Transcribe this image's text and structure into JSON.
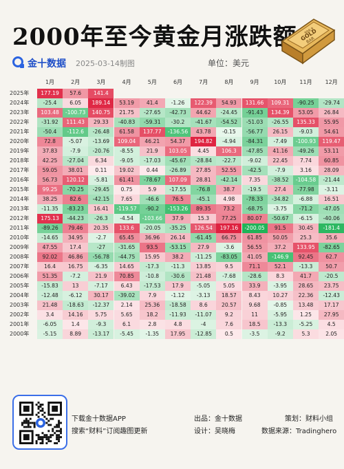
{
  "title": "2000年至今黄金月涨跌额",
  "brand": {
    "name": "金十数据",
    "date": "2025-03-14制图",
    "unit": "单位：美元"
  },
  "gold_bar_text": [
    "999.9",
    "GOLD",
    "BAR"
  ],
  "months": [
    "1月",
    "2月",
    "3月",
    "4月",
    "5月",
    "6月",
    "7月",
    "8月",
    "9月",
    "10月",
    "11月",
    "12月"
  ],
  "rows": [
    {
      "year": "2025年",
      "values": [
        "177.19",
        "57.6",
        "141.4",
        "",
        "",
        "",
        "",
        "",
        "",
        "",
        "",
        ""
      ]
    },
    {
      "year": "2024年",
      "values": [
        "-25.4",
        "6.05",
        "189.14",
        "53.19",
        "41.4",
        "-1.26",
        "122.39",
        "54.93",
        "131.66",
        "109.31",
        "-90.25",
        "-29.74"
      ]
    },
    {
      "year": "2023年",
      "values": [
        "103.48",
        "-100.73",
        "140.75",
        "21.75",
        "-27.65",
        "-42.73",
        "44.62",
        "-24.45",
        "-91.43",
        "134.39",
        "53.05",
        "26.84"
      ]
    },
    {
      "year": "2022年",
      "values": [
        "-31.92",
        "111.43",
        "29.33",
        "-40.83",
        "-59.31",
        "-30.2",
        "-41.67",
        "-54.52",
        "-51.03",
        "-26.55",
        "135.33",
        "55.95"
      ]
    },
    {
      "year": "2021年",
      "values": [
        "-50.4",
        "-112.6",
        "-26.48",
        "61.58",
        "137.77",
        "-136.56",
        "43.78",
        "-0.15",
        "-56.77",
        "26.15",
        "-9.03",
        "54.61"
      ]
    },
    {
      "year": "2020年",
      "values": [
        "72.8",
        "-5.07",
        "-13.69",
        "109.04",
        "46.21",
        "54.37",
        "194.82",
        "-4.94",
        "-84.31",
        "-7.49",
        "-100.93",
        "119.47"
      ]
    },
    {
      "year": "2019年",
      "values": [
        "37.83",
        "-7.9",
        "-20.76",
        "-8.55",
        "21.9",
        "103.05",
        "4.45",
        "106.3",
        "-47.85",
        "41.16",
        "-49.26",
        "53.11"
      ]
    },
    {
      "year": "2018年",
      "values": [
        "42.25",
        "-27.04",
        "6.34",
        "-9.05",
        "-17.03",
        "-45.67",
        "-28.84",
        "-22.7",
        "-9.02",
        "22.45",
        "7.74",
        "60.85"
      ]
    },
    {
      "year": "2017年",
      "values": [
        "59.05",
        "38.01",
        "0.11",
        "19.02",
        "0.44",
        "-26.89",
        "27.85",
        "52.55",
        "-42.5",
        "-7.9",
        "3.16",
        "28.09"
      ]
    },
    {
      "year": "2016年",
      "values": [
        "56.73",
        "120.12",
        "-5.81",
        "61.41",
        "-78.67",
        "107.09",
        "28.81",
        "-42.14",
        "7.35",
        "-38.52",
        "-104.58",
        "-21.44"
      ]
    },
    {
      "year": "2015年",
      "values": [
        "99.25",
        "-70.25",
        "-29.45",
        "0.75",
        "5.9",
        "-17.55",
        "-76.8",
        "38.7",
        "-19.5",
        "27.4",
        "-77.98",
        "-3.11"
      ]
    },
    {
      "year": "2014年",
      "values": [
        "38.25",
        "82.6",
        "-42.15",
        "7.65",
        "-46.6",
        "76.5",
        "-45.1",
        "4.98",
        "-78.33",
        "-34.82",
        "-6.88",
        "16.51"
      ]
    },
    {
      "year": "2013年",
      "values": [
        "-11.35",
        "-83.23",
        "16.41",
        "-119.57",
        "-90.2",
        "-153.26",
        "89.35",
        "73.2",
        "-68.75",
        "-3.75",
        "-71.2",
        "-47.05"
      ]
    },
    {
      "year": "2012年",
      "values": [
        "175.13",
        "-44.23",
        "-26.3",
        "-4.54",
        "-103.66",
        "37.9",
        "15.3",
        "77.25",
        "80.07",
        "-50.67",
        "-6.15",
        "-40.06"
      ]
    },
    {
      "year": "2011年",
      "values": [
        "-89.26",
        "79.46",
        "20.35",
        "133.6",
        "-20.05",
        "-35.25",
        "126.54",
        "197.16",
        "-200.05",
        "91.5",
        "30.45",
        "-181.4"
      ]
    },
    {
      "year": "2010年",
      "values": [
        "-14.65",
        "34.95",
        "-2.7",
        "65.45",
        "36.96",
        "26.14",
        "-61.45",
        "66.75",
        "61.85",
        "50.05",
        "25.3",
        "35.6"
      ]
    },
    {
      "year": "2009年",
      "values": [
        "47.55",
        "17.4",
        "-27",
        "-31.65",
        "93.5",
        "-53.15",
        "27.9",
        "-3.6",
        "56.55",
        "37.2",
        "133.95",
        "-82.65"
      ]
    },
    {
      "year": "2008年",
      "values": [
        "92.02",
        "46.86",
        "-56.78",
        "-44.75",
        "15.95",
        "38.2",
        "-11.25",
        "-83.05",
        "41.05",
        "-146.9",
        "92.45",
        "62.7"
      ]
    },
    {
      "year": "2007年",
      "values": [
        "16.4",
        "16.75",
        "-6.35",
        "14.65",
        "-17.3",
        "-11.3",
        "13.85",
        "9.5",
        "71.1",
        "52.1",
        "-13.3",
        "50.7"
      ]
    },
    {
      "year": "2006年",
      "values": [
        "51.35",
        "-7.2",
        "21.9",
        "70.85",
        "-10.8",
        "-30.6",
        "21.48",
        "-7.68",
        "-28.6",
        "8.3",
        "41.7",
        "-20.5"
      ]
    },
    {
      "year": "2005年",
      "values": [
        "-15.83",
        "13",
        "-7.17",
        "6.43",
        "-17.53",
        "17.9",
        "-5.05",
        "5.05",
        "33.9",
        "-3.95",
        "28.65",
        "23.75"
      ]
    },
    {
      "year": "2004年",
      "values": [
        "-12.48",
        "-6.12",
        "30.17",
        "-39.02",
        "7.9",
        "-1.12",
        "-3.13",
        "18.57",
        "8.43",
        "10.27",
        "22.36",
        "-12.43"
      ]
    },
    {
      "year": "2003年",
      "values": [
        "21.48",
        "-18.63",
        "-12.37",
        "2.14",
        "25.36",
        "-18.58",
        "8.6",
        "20.57",
        "9.68",
        "-0.85",
        "13.48",
        "17.17"
      ]
    },
    {
      "year": "2002年",
      "values": [
        "3.4",
        "14.16",
        "5.75",
        "5.65",
        "18.2",
        "-11.93",
        "-11.07",
        "9.2",
        "11",
        "-5.95",
        "1.25",
        "27.95"
      ]
    },
    {
      "year": "2001年",
      "values": [
        "-6.05",
        "1.4",
        "-9.3",
        "6.1",
        "2.8",
        "4.8",
        "-4",
        "7.6",
        "18.5",
        "-13.3",
        "-5.25",
        "4.5"
      ]
    },
    {
      "year": "2000年",
      "values": [
        "-5.15",
        "8.89",
        "-13.17",
        "-5.45",
        "-1.35",
        "17.95",
        "-12.85",
        "0.5",
        "-3.5",
        "-9.2",
        "5.3",
        "2.05"
      ]
    }
  ],
  "footer": {
    "download": "下载金十数据APP",
    "search": "搜索“财料”订阅趣图更新",
    "producer": "出品：金十数据",
    "designer": "设计：吴晓梅",
    "planner": "策划：财料小组",
    "source": "数据来源：Tradinghero"
  }
}
